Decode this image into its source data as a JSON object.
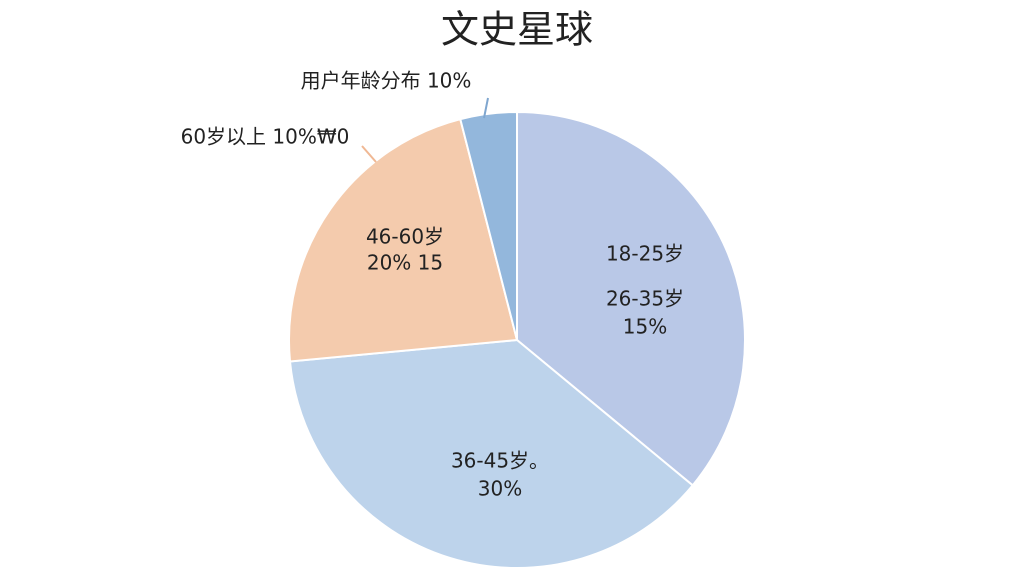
{
  "chart_data": {
    "type": "pie",
    "title": "文史星球",
    "values": [
      36,
      37.5,
      22.5,
      4
    ],
    "colors": [
      "#b9c8e7",
      "#bdd3eb",
      "#f4cbad",
      "#93b7dc"
    ],
    "annotations": [
      "用户年龄分布 10%",
      "60岁以上 10%₩0",
      "46-60岁",
      "20% 15",
      "18-25岁",
      "26-35岁",
      "15%",
      "36-45岁。",
      "30%"
    ]
  }
}
